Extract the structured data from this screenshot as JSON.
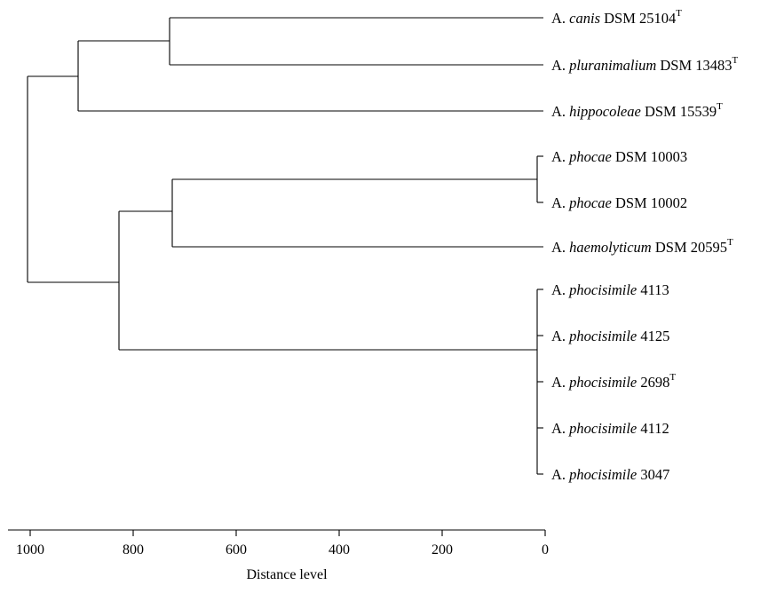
{
  "figure": {
    "axis_title": "Distance level",
    "axis_ticks": [
      "1000",
      "800",
      "600",
      "400",
      "200",
      "0"
    ],
    "leaves": [
      {
        "genus": "A.",
        "species": "canis",
        "strain": "DSM 25104",
        "superscript": "T"
      },
      {
        "genus": "A.",
        "species": "pluranimalium",
        "strain": "DSM 13483",
        "superscript": "T"
      },
      {
        "genus": "A.",
        "species": "hippocoleae",
        "strain": "DSM 15539",
        "superscript": "T"
      },
      {
        "genus": "A.",
        "species": "phocae",
        "strain": "DSM 10003",
        "superscript": ""
      },
      {
        "genus": "A.",
        "species": "phocae",
        "strain": "DSM 10002",
        "superscript": ""
      },
      {
        "genus": "A.",
        "species": "haemolyticum",
        "strain": "DSM 20595",
        "superscript": "T"
      },
      {
        "genus": "A.",
        "species": "phocisimile",
        "strain": "4113",
        "superscript": ""
      },
      {
        "genus": "A.",
        "species": "phocisimile",
        "strain": "4125",
        "superscript": ""
      },
      {
        "genus": "A.",
        "species": "phocisimile",
        "strain": "2698",
        "superscript": "T"
      },
      {
        "genus": "A.",
        "species": "phocisimile",
        "strain": "4112",
        "superscript": ""
      },
      {
        "genus": "A.",
        "species": "phocisimile",
        "strain": "3047",
        "superscript": ""
      }
    ]
  },
  "chart_data": {
    "type": "dendrogram",
    "xlabel": "Distance level",
    "xlim": [
      1000,
      0
    ],
    "ticks": [
      1000,
      800,
      600,
      400,
      200,
      0
    ],
    "leaves": [
      "A. canis DSM 25104T",
      "A. pluranimalium DSM 13483T",
      "A. hippocoleae DSM 15539T",
      "A. phocae DSM 10003",
      "A. phocae DSM 10002",
      "A. haemolyticum DSM 20595T",
      "A. phocisimile 4113",
      "A. phocisimile 4125",
      "A. phocisimile 2698T",
      "A. phocisimile 4112",
      "A. phocisimile 3047"
    ],
    "merges": [
      {
        "children": [
          "A. phocae DSM 10003",
          "A. phocae DSM 10002"
        ],
        "distance": 5
      },
      {
        "children": [
          "A. phocisimile 4113",
          "A. phocisimile 4125",
          "A. phocisimile 2698T",
          "A. phocisimile 4112",
          "A. phocisimile 3047"
        ],
        "distance": 5
      },
      {
        "children": [
          "A. canis DSM 25104T",
          "A. pluranimalium DSM 13483T"
        ],
        "distance": 690
      },
      {
        "children": [
          "A. phocae cluster",
          "A. haemolyticum DSM 20595T"
        ],
        "distance": 688
      },
      {
        "children": [
          "A. canis / A. pluranimalium cluster",
          "A. hippocoleae DSM 15539T"
        ],
        "distance": 860
      },
      {
        "children": [
          "A. phocae / A. haemolyticum cluster",
          "A. phocisimile cluster"
        ],
        "distance": 780
      },
      {
        "children": [
          "upper cluster",
          "lower cluster"
        ],
        "distance": 957
      }
    ]
  }
}
